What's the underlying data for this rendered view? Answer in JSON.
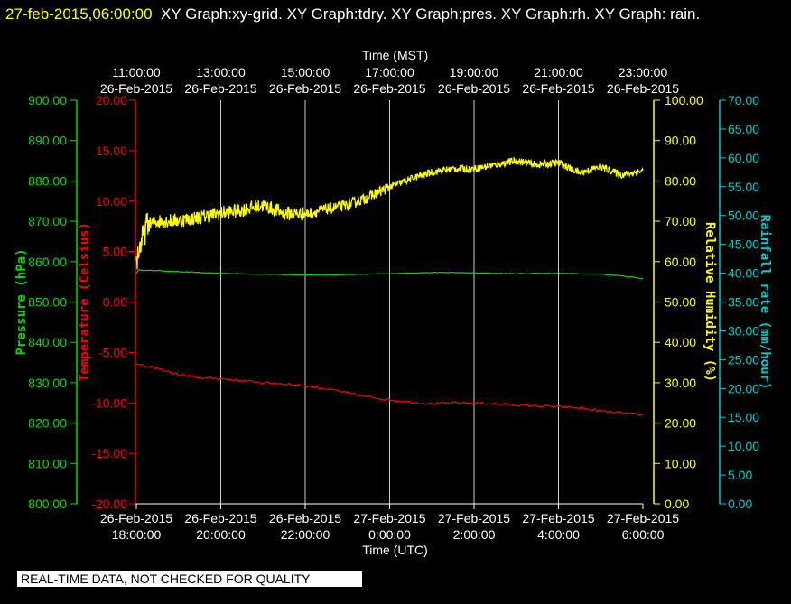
{
  "header": {
    "timestamp": "27-feb-2015,06:00:00",
    "titles": "XY Graph:xy-grid.  XY Graph:tdry.  XY Graph:pres.  XY Graph:rh.  XY Graph: rain."
  },
  "notice": "REAL-TIME DATA, NOT CHECKED FOR QUALITY",
  "colors": {
    "background": "#000000",
    "grid": "#ffffff",
    "pressure": "#00dd00",
    "temperature": "#ff0000",
    "humidity": "#ffff00",
    "rain": "#00cccc",
    "text": "#ffffff"
  },
  "chart_data": {
    "type": "line",
    "x_top_label": "Time (MST)",
    "x_bottom_label": "Time (UTC)",
    "x_top_ticks": [
      {
        "time": "11:00:00",
        "date": "26-Feb-2015"
      },
      {
        "time": "13:00:00",
        "date": "26-Feb-2015"
      },
      {
        "time": "15:00:00",
        "date": "26-Feb-2015"
      },
      {
        "time": "17:00:00",
        "date": "26-Feb-2015"
      },
      {
        "time": "19:00:00",
        "date": "26-Feb-2015"
      },
      {
        "time": "21:00:00",
        "date": "26-Feb-2015"
      },
      {
        "time": "23:00:00",
        "date": "26-Feb-2015"
      }
    ],
    "x_bottom_ticks": [
      {
        "date": "26-Feb-2015",
        "time": "18:00:00"
      },
      {
        "date": "26-Feb-2015",
        "time": "20:00:00"
      },
      {
        "date": "26-Feb-2015",
        "time": "22:00:00"
      },
      {
        "date": "27-Feb-2015",
        "time": "0:00:00"
      },
      {
        "date": "27-Feb-2015",
        "time": "2:00:00"
      },
      {
        "date": "27-Feb-2015",
        "time": "4:00:00"
      },
      {
        "date": "27-Feb-2015",
        "time": "6:00:00"
      }
    ],
    "xlim": [
      "26-Feb-2015 18:00:00",
      "27-Feb-2015 6:00:00"
    ],
    "grid": true,
    "axes": [
      {
        "key": "pressure",
        "label": "Pressure (hPa)",
        "ticks": [
          "900.00",
          "890.00",
          "880.00",
          "870.00",
          "860.00",
          "850.00",
          "840.00",
          "830.00",
          "820.00",
          "810.00",
          "800.00"
        ],
        "ylim": [
          800,
          900
        ]
      },
      {
        "key": "temperature",
        "label": "Temperature (Celsius)",
        "ticks": [
          "20.00",
          "15.00",
          "10.00",
          "5.00",
          "0.00",
          "-5.00",
          "-10.00",
          "-15.00",
          "-20.00"
        ],
        "ylim": [
          -20,
          20
        ]
      },
      {
        "key": "humidity",
        "label": "Relative Humidity (%)",
        "ticks": [
          "100.00",
          "90.00",
          "80.00",
          "70.00",
          "60.00",
          "50.00",
          "40.00",
          "30.00",
          "20.00",
          "10.00",
          "0.00"
        ],
        "ylim": [
          0,
          100
        ]
      },
      {
        "key": "rain",
        "label": "Rainfall rate (mm/hour)",
        "ticks": [
          "70.00",
          "65.00",
          "60.00",
          "55.00",
          "50.00",
          "45.00",
          "40.00",
          "35.00",
          "30.00",
          "25.00",
          "20.00",
          "15.00",
          "10.00",
          "5.00",
          "0.00"
        ],
        "ylim": [
          0,
          70
        ]
      }
    ],
    "x_hours": [
      0,
      0.05,
      0.25,
      0.5,
      1,
      1.5,
      2,
      2.5,
      3,
      3.5,
      4,
      4.5,
      5,
      5.5,
      6,
      6.5,
      7,
      7.5,
      8,
      8.5,
      9,
      9.5,
      10,
      10.5,
      11,
      11.5,
      12
    ],
    "series": [
      {
        "key": "pressure",
        "axis": "pressure",
        "values": [
          857.0,
          858.0,
          857.8,
          857.8,
          857.5,
          857.3,
          857.1,
          857.0,
          856.9,
          856.8,
          856.7,
          856.7,
          856.8,
          856.9,
          857.0,
          857.2,
          857.3,
          857.3,
          857.2,
          857.1,
          857.0,
          857.1,
          857.1,
          857.0,
          856.9,
          856.5,
          855.8
        ]
      },
      {
        "key": "temperature",
        "axis": "temperature",
        "values": [
          -6.0,
          -6.2,
          -6.4,
          -6.6,
          -7.2,
          -7.5,
          -7.6,
          -7.8,
          -8.0,
          -8.1,
          -8.3,
          -8.6,
          -9.0,
          -9.4,
          -9.7,
          -9.9,
          -10.1,
          -10.0,
          -10.0,
          -10.1,
          -10.2,
          -10.3,
          -10.4,
          -10.5,
          -10.8,
          -11.0,
          -11.2
        ]
      },
      {
        "key": "humidity",
        "axis": "humidity",
        "values": [
          60.0,
          62.5,
          69.0,
          70.0,
          70.2,
          71.0,
          72.0,
          72.8,
          74.0,
          72.0,
          71.8,
          73.0,
          74.0,
          76.0,
          78.5,
          80.5,
          82.2,
          83.0,
          83.0,
          84.0,
          85.0,
          84.0,
          84.5,
          82.0,
          83.5,
          81.5,
          82.5
        ]
      }
    ]
  }
}
